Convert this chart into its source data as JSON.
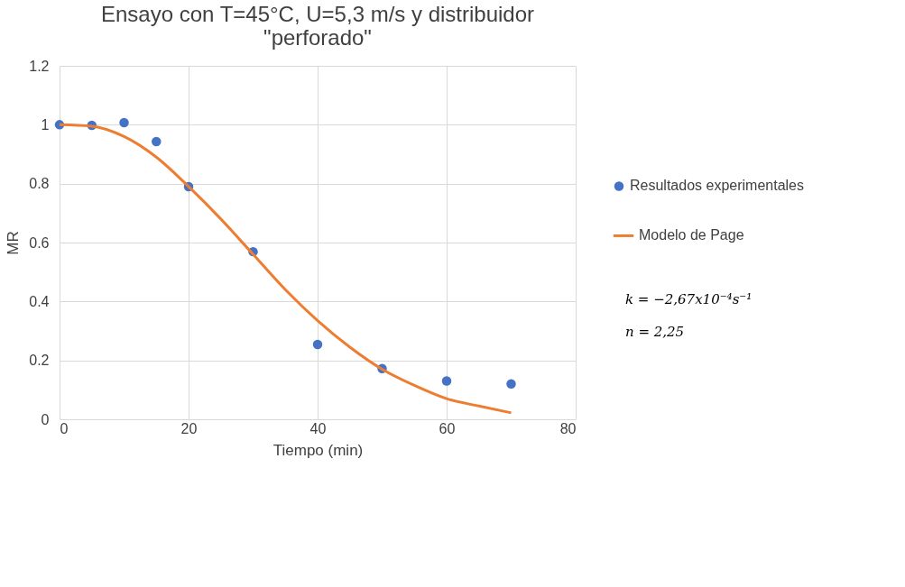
{
  "chart_data": {
    "type": "scatter",
    "title": "Ensayo con T=45°C, U=5,3 m/s y distribuidor \"perforado\"",
    "xlabel": "Tiempo (min)",
    "ylabel": "MR",
    "series": [
      {
        "name": "Resultados experimentales",
        "color": "#4472c4",
        "marker": "circle",
        "x": [
          0,
          5,
          10,
          15,
          20,
          30,
          40,
          50,
          60,
          70
        ],
        "values": [
          1.0,
          0.998,
          1.007,
          0.943,
          0.79,
          0.569,
          0.254,
          0.172,
          0.13,
          0.12
        ]
      },
      {
        "name": "Modelo de Page",
        "type": "line",
        "color": "#ed7d31",
        "line_style": "solid",
        "x": [
          0,
          5,
          10,
          15,
          20,
          25,
          30,
          35,
          40,
          45,
          50,
          55,
          60,
          65,
          70
        ],
        "values": [
          1.0,
          0.995,
          0.96,
          0.89,
          0.79,
          0.68,
          0.56,
          0.44,
          0.335,
          0.245,
          0.17,
          0.115,
          0.07,
          0.045,
          0.022
        ]
      }
    ],
    "xlim": [
      0,
      80
    ],
    "xticks": [
      0,
      20,
      40,
      60,
      80
    ],
    "ylim": [
      0,
      1.2
    ],
    "yticks": [
      0,
      0.2,
      0.4,
      0.6,
      0.8,
      1,
      1.2
    ],
    "grid": true,
    "legend": "right",
    "annotations": [
      "k = −2,67x10⁻⁴s⁻¹",
      "n = 2,25"
    ]
  }
}
